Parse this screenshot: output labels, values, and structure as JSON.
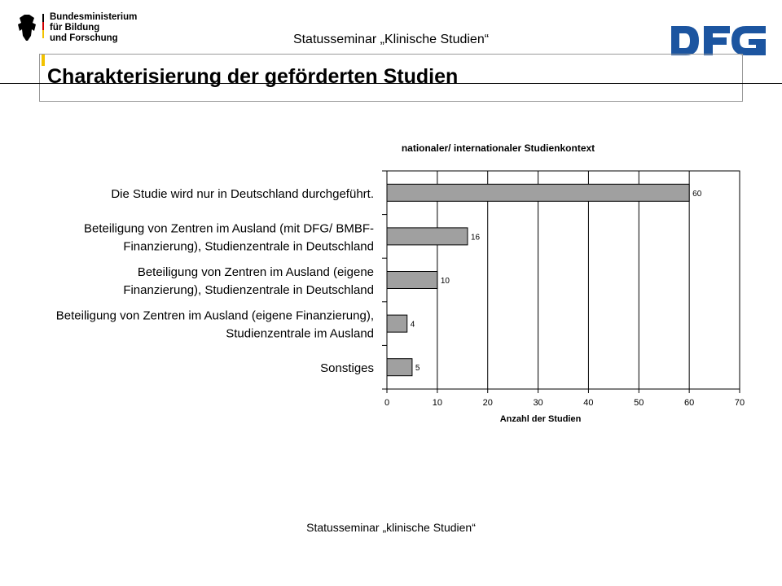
{
  "header": {
    "ministry_lines": [
      "Bundesministerium",
      "für Bildung",
      "und Forschung"
    ],
    "event_title": "Statusseminar „Klinische Studien“",
    "logo_right": "DFG",
    "logo_left_icon": "federal-eagle-icon"
  },
  "page": {
    "title": "Charakterisierung der geförderten Studien"
  },
  "footer": {
    "text": "Statusseminar „klinische Studien“"
  },
  "colors": {
    "bar_fill": "#a0a0a0",
    "dfg_blue": "#1c55a0",
    "accent": "#f2c200"
  },
  "chart_data": {
    "type": "bar",
    "orientation": "horizontal",
    "title": "nationaler/ internationaler Studienkontext",
    "xlabel": "Anzahl der Studien",
    "ylabel": "",
    "xlim": [
      0,
      70
    ],
    "x_ticks": [
      0,
      10,
      20,
      30,
      40,
      50,
      60,
      70
    ],
    "grid": true,
    "categories": [
      [
        "Die Studie wird nur in Deutschland durchgeführt."
      ],
      [
        "Beteiligung von Zentren im Ausland (mit DFG/ BMBF-",
        "Finanzierung), Studienzentrale in Deutschland"
      ],
      [
        "Beteiligung  von Zentren im Ausland (eigene",
        "Finanzierung), Studienzentrale in Deutschland"
      ],
      [
        "Beteiligung von Zentren im Ausland (eigene Finanzierung),",
        "Studienzentrale im Ausland"
      ],
      [
        "Sonstiges"
      ]
    ],
    "values": [
      60,
      16,
      10,
      4,
      5
    ]
  }
}
